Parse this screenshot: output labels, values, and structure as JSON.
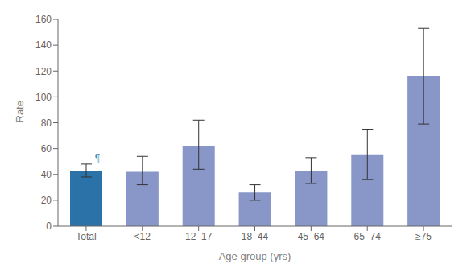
{
  "chart_data": {
    "type": "bar",
    "categories": [
      "Total",
      "<12",
      "12–17",
      "18–44",
      "45–64",
      "65–74",
      "≥75"
    ],
    "values": [
      43,
      42,
      62,
      26,
      43,
      55,
      116
    ],
    "error_lower": [
      5,
      10,
      18,
      6,
      10,
      19,
      37
    ],
    "error_upper": [
      5,
      12,
      20,
      6,
      10,
      20,
      37
    ],
    "colors": [
      "#2a72a8",
      "#8896c8",
      "#8896c8",
      "#8896c8",
      "#8896c8",
      "#8896c8",
      "#8896c8"
    ],
    "xlabel": "Age group (yrs)",
    "ylabel": "Rate",
    "ylim": [
      0,
      160
    ],
    "yticks": [
      0,
      20,
      40,
      60,
      80,
      100,
      120,
      140,
      160
    ],
    "annotations": [
      {
        "text": "¶",
        "category": "Total"
      }
    ],
    "grid": false
  }
}
